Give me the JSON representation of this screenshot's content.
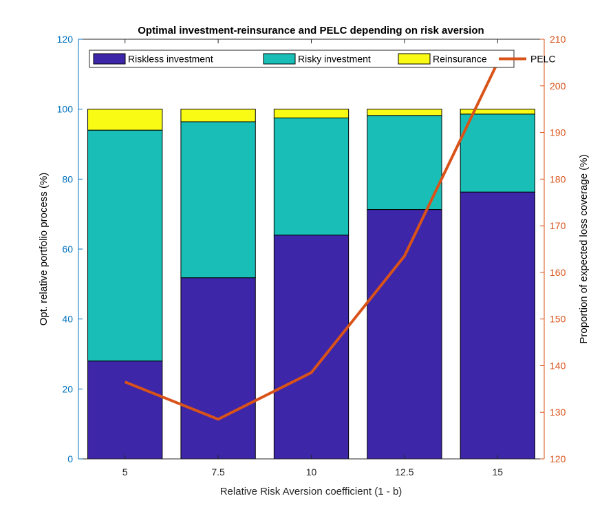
{
  "chart_data": {
    "type": "bar",
    "stacked": true,
    "title": "Optimal investment-reinsurance and PELC depending on risk aversion",
    "xlabel": "Relative Risk Aversion coefficient (1 - b)",
    "ylabel_left": "Opt. relative portfolio process (%)",
    "ylabel_right": "Proportion of expected loss coverage (%)",
    "categories": [
      "5",
      "7.5",
      "10",
      "12.5",
      "15"
    ],
    "ylim_left": [
      0,
      120
    ],
    "ylim_right": [
      120,
      210
    ],
    "yticks_left": [
      "0",
      "20",
      "40",
      "60",
      "80",
      "100",
      "120"
    ],
    "yticks_right": [
      "120",
      "130",
      "140",
      "150",
      "160",
      "170",
      "180",
      "190",
      "200",
      "210"
    ],
    "series": [
      {
        "name": "Riskless investment",
        "values": [
          28,
          51.8,
          64,
          71.3,
          76.3
        ],
        "color": "#3e26a8",
        "axis": "left"
      },
      {
        "name": "Risky investment",
        "values": [
          66,
          44.6,
          33.5,
          26.9,
          22.3
        ],
        "color": "#19bfb7",
        "axis": "left"
      },
      {
        "name": "Reinsurance",
        "values": [
          6,
          3.6,
          2.5,
          1.8,
          1.4
        ],
        "color": "#f9fb15",
        "axis": "left"
      },
      {
        "name": "PELC",
        "type": "line",
        "values": [
          136.5,
          128.5,
          138.5,
          163.5,
          205
        ],
        "color": "#d95319",
        "axis": "right"
      }
    ],
    "legend": "top-inside",
    "grid": false,
    "colors": {
      "left_axis": "#0072bd",
      "right_axis": "#d95319"
    }
  }
}
